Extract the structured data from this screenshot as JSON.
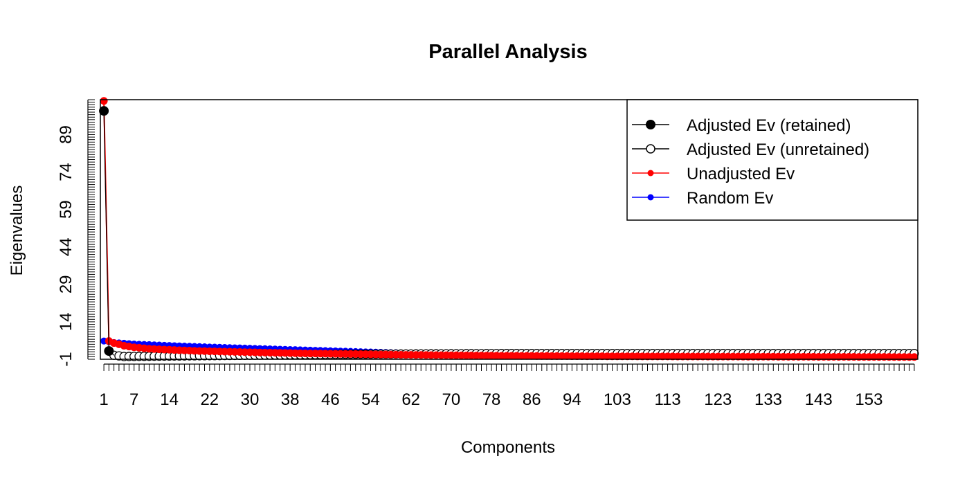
{
  "chart_data": {
    "type": "line",
    "title": "Parallel Analysis",
    "xlabel": "Components",
    "ylabel": "Eigenvalues",
    "xlim": [
      0.3,
      162.7
    ],
    "ylim": [
      -1,
      103
    ],
    "x_tick_labels": [
      1,
      7,
      14,
      22,
      30,
      38,
      46,
      54,
      62,
      70,
      78,
      86,
      94,
      103,
      113,
      123,
      133,
      143,
      153
    ],
    "y_tick_labels": [
      -1,
      14,
      29,
      44,
      59,
      74,
      89
    ],
    "n_components": 162,
    "legend_position": "top-right",
    "legend": [
      {
        "label": "Adjusted Ev (retained)",
        "color": "#000000",
        "marker": "filled-circle"
      },
      {
        "label": "Adjusted Ev (unretained)",
        "color": "#000000",
        "marker": "open-circle"
      },
      {
        "label": "Unadjusted Ev",
        "color": "#ff0000",
        "marker": "filled-dot"
      },
      {
        "label": "Random Ev",
        "color": "#0000ff",
        "marker": "filled-dot"
      }
    ],
    "series": [
      {
        "name": "Adjusted Ev (retained)",
        "color": "#000000",
        "x": [
          1,
          2
        ],
        "values": [
          98.5,
          2.3
        ]
      },
      {
        "name": "Adjusted Ev (unretained)",
        "color": "#000000",
        "x": [
          3,
          5,
          10,
          20,
          30,
          40,
          50,
          60,
          70,
          80,
          100,
          120,
          140,
          162
        ],
        "values": [
          0.6,
          0.1,
          0.2,
          0.4,
          0.6,
          0.8,
          1.0,
          1.1,
          1.2,
          1.3,
          1.3,
          1.3,
          1.3,
          1.3
        ]
      },
      {
        "name": "Unadjusted Ev",
        "color": "#ff0000",
        "x": [
          1,
          2,
          3,
          4,
          5,
          7,
          10,
          15,
          20,
          30,
          40,
          50,
          60,
          70,
          80,
          100,
          120,
          140,
          162
        ],
        "values": [
          102.5,
          6.3,
          5.5,
          5.0,
          4.4,
          3.8,
          3.2,
          2.7,
          2.3,
          1.8,
          1.4,
          1.1,
          0.8,
          0.6,
          0.4,
          0.2,
          0.1,
          0.0,
          -0.1
        ]
      },
      {
        "name": "Random Ev",
        "color": "#0000ff",
        "x": [
          1,
          3,
          7,
          14,
          22,
          30,
          38,
          46,
          54,
          62,
          70,
          80,
          100,
          120,
          140,
          162
        ],
        "values": [
          6.3,
          5.7,
          5.1,
          4.5,
          3.9,
          3.4,
          2.9,
          2.4,
          1.9,
          1.4,
          1.0,
          0.6,
          0.3,
          0.1,
          0.0,
          -0.1
        ]
      }
    ]
  }
}
